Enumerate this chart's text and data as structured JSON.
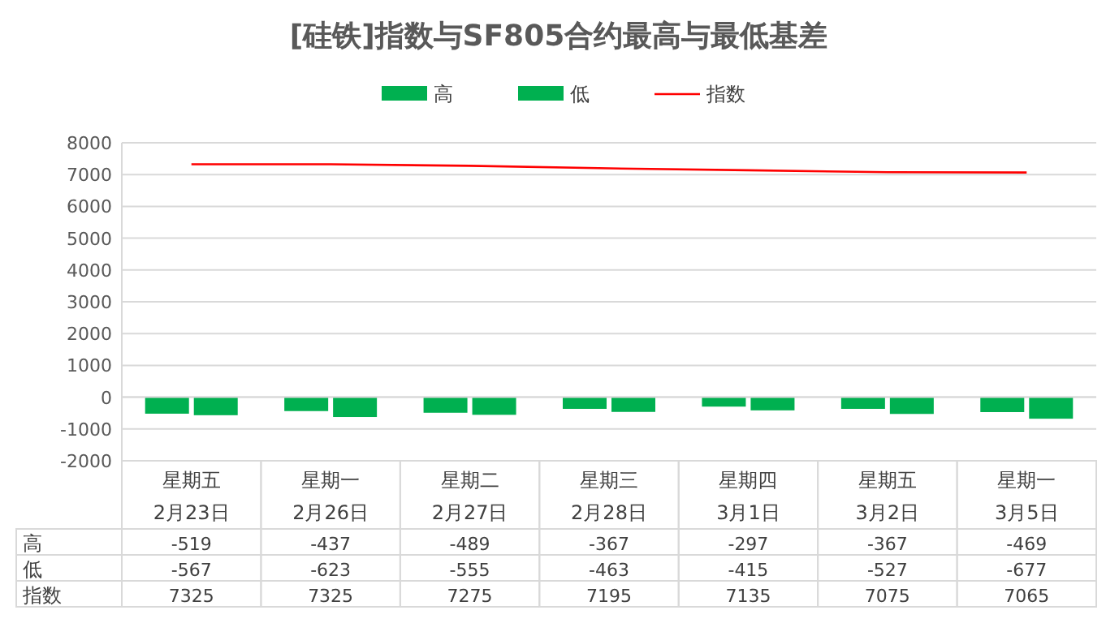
{
  "chart_data": {
    "type": "bar",
    "title": "[硅铁]指数与SF805合约最高与最低基差",
    "categories": [
      "星期五\n2月23日",
      "星期一\n2月26日",
      "星期二\n2月27日",
      "星期三\n2月28日",
      "星期四\n3月1日",
      "星期五\n3月2日",
      "星期一\n3月5日"
    ],
    "series": [
      {
        "name": "高",
        "color": "#00b050",
        "values": [
          -519,
          -437,
          -489,
          -367,
          -297,
          -367,
          -469
        ]
      },
      {
        "name": "低",
        "color": "#00b050",
        "values": [
          -567,
          -623,
          -555,
          -463,
          -415,
          -527,
          -677
        ]
      },
      {
        "name": "指数",
        "type": "line",
        "color": "#ff0000",
        "values": [
          7325,
          7325,
          7275,
          7195,
          7135,
          7075,
          7065
        ]
      }
    ],
    "ylim": [
      -2000,
      8000
    ],
    "yticks": [
      -2000,
      -1000,
      0,
      1000,
      2000,
      3000,
      4000,
      5000,
      6000,
      7000,
      8000
    ],
    "grid": "y",
    "legend": "top",
    "data_labels": true,
    "marker": "none",
    "line_style": "solid"
  }
}
